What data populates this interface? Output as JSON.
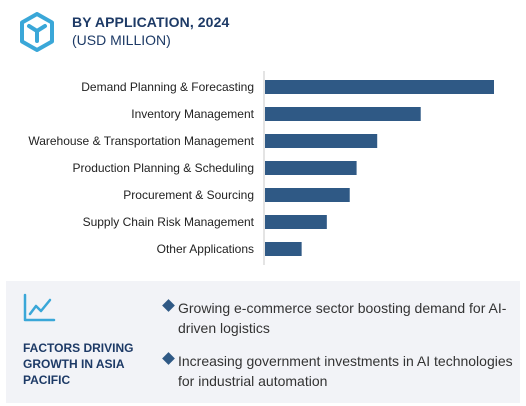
{
  "header": {
    "title": "BY APPLICATION, 2024",
    "subtitle": "(USD MILLION)",
    "logo_icon": "cube-y-icon"
  },
  "chart_data": {
    "type": "bar",
    "orientation": "horizontal",
    "categories": [
      "Demand Planning & Forecasting",
      "Inventory Management",
      "Warehouse & Transportation Management",
      "Production Planning & Scheduling",
      "Procurement & Sourcing",
      "Supply Chain Risk Management",
      "Other Applications"
    ],
    "values": [
      100,
      68,
      49,
      40,
      37,
      27,
      16
    ],
    "xlim": [
      0,
      100
    ],
    "grid": false,
    "legend": "none",
    "bar_color": "#2f5985",
    "axis_color": "#c8c8c8"
  },
  "factors": {
    "icon": "trend-line-icon",
    "title": "FACTORS DRIVING GROWTH IN ASIA PACIFIC",
    "bullets": [
      "Growing e-commerce sector boosting demand for AI-driven logistics",
      "Increasing government investments in AI technologies for industrial automation"
    ]
  },
  "colors": {
    "accent": "#2f5985",
    "title": "#1d3a66",
    "panel_bg": "#f2f3f7",
    "logo": "#3aa7d8"
  }
}
